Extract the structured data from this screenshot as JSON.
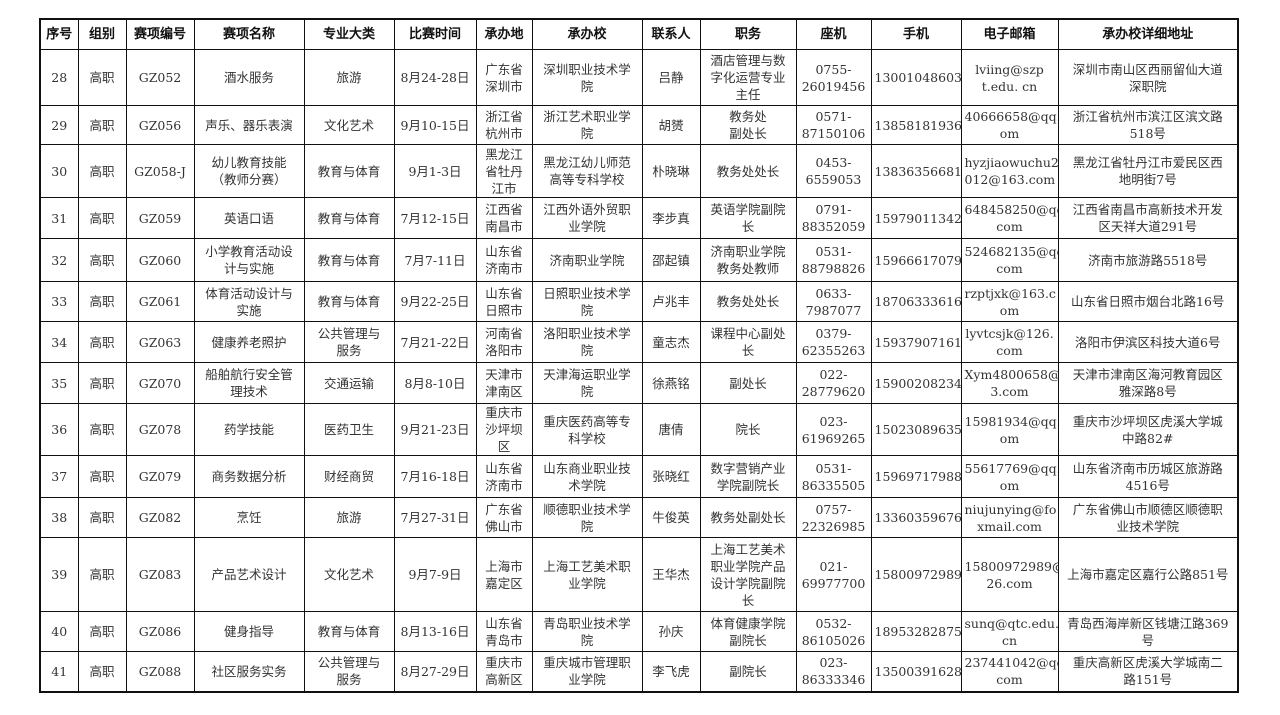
{
  "headers": [
    "序号",
    "组别",
    "赛项编号",
    "赛项名称",
    "专业大类",
    "比赛时间",
    "承办地",
    "承办校",
    "联系人",
    "职务",
    "座机",
    "手机",
    "电子邮箱",
    "承办校详细地址"
  ],
  "rows": [
    [
      "28",
      "高职",
      "GZ052",
      "酒水服务",
      "旅游",
      "8月24-28日",
      "广东省\n深圳市",
      "深圳职业技术学\n院",
      "吕静",
      "酒店管理与数\n字化运营专业\n主任",
      "0755-\n26019456",
      "13001048603",
      "lviing@szp\nt.edu. cn",
      "深圳市南山区西丽留仙大道\n深职院"
    ],
    [
      "29",
      "高职",
      "GZ056",
      "声乐、器乐表演",
      "文化艺术",
      "9月10-15日",
      "浙江省\n杭州市",
      "浙江艺术职业学\n院",
      "胡赟",
      "教务处\n副处长",
      "0571-\n87150106",
      "13858181936",
      "40666658@qq.c\nom",
      "浙江省杭州市滨江区滨文路\n518号"
    ],
    [
      "30",
      "高职",
      "GZ058-J",
      "幼儿教育技能\n（教师分赛）",
      "教育与体育",
      "9月1-3日",
      "黑龙江\n省牡丹\n江市",
      "黑龙江幼儿师范\n高等专科学校",
      "朴晓琳",
      "教务处处长",
      "0453-\n6559053",
      "13836356681",
      "hyzjiaowuchu2\n012@163.com",
      "黑龙江省牡丹江市爱民区西\n地明街7号"
    ],
    [
      "31",
      "高职",
      "GZ059",
      "英语口语",
      "教育与体育",
      "7月12-15日",
      "江西省\n南昌市",
      "江西外语外贸职\n业学院",
      "李步真",
      "英语学院副院\n长",
      "0791-\n88352059",
      "15979011342",
      "648458250@qq.\ncom",
      "江西省南昌市高新技术开发\n区天祥大道291号"
    ],
    [
      "32",
      "高职",
      "GZ060",
      "小学教育活动设\n计与实施",
      "教育与体育",
      "7月7-11日",
      "山东省\n济南市",
      "济南职业学院",
      "邵起镇",
      "济南职业学院\n教务处教师",
      "0531-\n88798826",
      "15966617079",
      "524682135@qq.\ncom",
      "济南市旅游路5518号"
    ],
    [
      "33",
      "高职",
      "GZ061",
      "体育活动设计与\n实施",
      "教育与体育",
      "9月22-25日",
      "山东省\n日照市",
      "日照职业技术学\n院",
      "卢兆丰",
      "教务处处长",
      "0633-\n7987077",
      "18706333616",
      "rzptjxk@163.c\nom",
      "山东省日照市烟台北路16号"
    ],
    [
      "34",
      "高职",
      "GZ063",
      "健康养老照护",
      "公共管理与\n服务",
      "7月21-22日",
      "河南省\n洛阳市",
      "洛阳职业技术学\n院",
      "童志杰",
      "课程中心副处\n长",
      "0379-\n62355263",
      "15937907161",
      "lyvtcsjk@126.\ncom",
      "洛阳市伊滨区科技大道6号"
    ],
    [
      "35",
      "高职",
      "GZ070",
      "船舶航行安全管\n理技术",
      "交通运输",
      "8月8-10日",
      "天津市\n津南区",
      "天津海运职业学\n院",
      "徐燕铭",
      "副处长",
      "022-\n28779620",
      "15900208234",
      "Xym4800658@16\n3.com",
      "天津市津南区海河教育园区\n雅深路8号"
    ],
    [
      "36",
      "高职",
      "GZ078",
      "药学技能",
      "医药卫生",
      "9月21-23日",
      "重庆市\n沙坪坝\n区",
      "重庆医药高等专\n科学校",
      "唐倩",
      "院长",
      "023-\n61969265",
      "15023089635",
      "15981934@qq.c\nom",
      "重庆市沙坪坝区虎溪大学城\n中路82#"
    ],
    [
      "37",
      "高职",
      "GZ079",
      "商务数据分析",
      "财经商贸",
      "7月16-18日",
      "山东省\n济南市",
      "山东商业职业技\n术学院",
      "张晓红",
      "数字营销产业\n学院副院长",
      "0531-\n86335505",
      "15969717988",
      "55617769@qq.c\nom",
      "山东省济南市历城区旅游路\n4516号"
    ],
    [
      "38",
      "高职",
      "GZ082",
      "烹饪",
      "旅游",
      "7月27-31日",
      "广东省\n佛山市",
      "顺德职业技术学\n院",
      "牛俊英",
      "教务处副处长",
      "0757-\n22326985",
      "13360359676",
      "niujunying@fo\nxmail.com",
      "广东省佛山市顺德区顺德职\n业技术学院"
    ],
    [
      "39",
      "高职",
      "GZ083",
      "产品艺术设计",
      "文化艺术",
      "9月7-9日",
      "上海市\n嘉定区",
      "上海工艺美术职\n业学院",
      "王华杰",
      "上海工艺美术\n职业学院产品\n设计学院副院\n长",
      "021-\n69977700",
      "15800972989",
      "15800972989@1\n26.com",
      "上海市嘉定区嘉行公路851号"
    ],
    [
      "40",
      "高职",
      "GZ086",
      "健身指导",
      "教育与体育",
      "8月13-16日",
      "山东省\n青岛市",
      "青岛职业技术学\n院",
      "孙庆",
      "体育健康学院\n副院长",
      "0532-\n86105026",
      "18953282875",
      "sunq@qtc.edu.\ncn",
      "青岛西海岸新区钱塘江路369\n号"
    ],
    [
      "41",
      "高职",
      "GZ088",
      "社区服务实务",
      "公共管理与\n服务",
      "8月27-29日",
      "重庆市\n高新区",
      "重庆城市管理职\n业学院",
      "李飞虎",
      "副院长",
      "023-\n86333346",
      "13500391628",
      "237441042@qq.\ncom",
      "重庆高新区虎溪大学城南二\n路151号"
    ]
  ]
}
